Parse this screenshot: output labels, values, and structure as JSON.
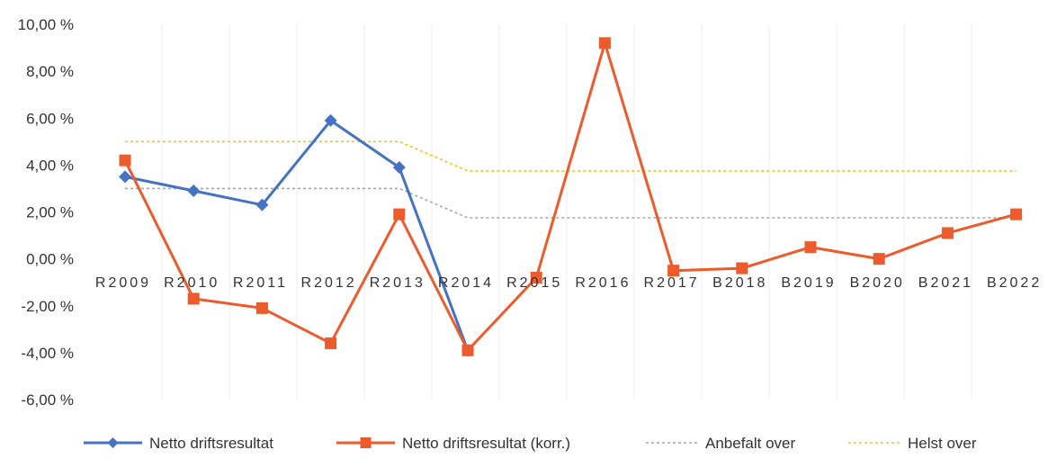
{
  "chart_data": {
    "type": "line",
    "title": "",
    "xlabel": "",
    "ylabel": "",
    "categories": [
      "R2009",
      "R2010",
      "R2011",
      "R2012",
      "R2013",
      "R2014",
      "R2015",
      "R2016",
      "R2017",
      "B2018",
      "B2019",
      "B2020",
      "B2021",
      "B2022"
    ],
    "y_tick_labels": [
      "10,00 %",
      "8,00 %",
      "6,00 %",
      "4,00 %",
      "2,00 %",
      "0,00 %",
      "-2,00 %",
      "-4,00 %",
      "-6,00 %"
    ],
    "y_tick_values": [
      10,
      8,
      6,
      4,
      2,
      0,
      -2,
      -4,
      -6
    ],
    "ylim": [
      -6,
      10
    ],
    "grid": "vertical, faint",
    "legend_position": "bottom",
    "series": [
      {
        "name": "Netto driftsresultat",
        "style": "solid",
        "marker": "diamond",
        "color": "#4472C4",
        "values": [
          3.5,
          2.9,
          2.3,
          5.9,
          3.9,
          -3.9,
          null,
          null,
          null,
          null,
          null,
          null,
          null,
          null
        ]
      },
      {
        "name": "Netto driftsresultat (korr.)",
        "style": "solid",
        "marker": "square",
        "color": "#ED5A2B",
        "values": [
          4.2,
          -1.7,
          -2.1,
          -3.6,
          1.9,
          -3.9,
          -0.8,
          9.2,
          -0.5,
          -0.4,
          0.5,
          0.0,
          1.1,
          1.9
        ]
      },
      {
        "name": "Anbefalt over",
        "style": "dotted",
        "marker": "none",
        "color": "#A6A6A6",
        "values": [
          3.0,
          3.0,
          3.0,
          3.0,
          3.0,
          1.75,
          1.75,
          1.75,
          1.75,
          1.75,
          1.75,
          1.75,
          1.75,
          1.75
        ]
      },
      {
        "name": "Helst over",
        "style": "dotted",
        "marker": "none",
        "color": "#FFC000",
        "values": [
          5.0,
          5.0,
          5.0,
          5.0,
          5.0,
          3.75,
          3.75,
          3.75,
          3.75,
          3.75,
          3.75,
          3.75,
          3.75,
          3.75
        ]
      }
    ]
  }
}
